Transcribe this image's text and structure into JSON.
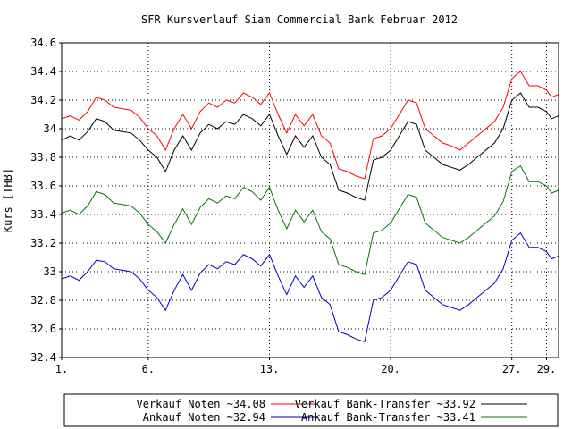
{
  "chart_data": {
    "type": "line",
    "title": "SFR Kursverlauf Siam Commercial Bank Februar 2012",
    "xlabel": "",
    "ylabel": "Kurs [THB]",
    "x_ticks": [
      "1.",
      "6.",
      "13.",
      "20.",
      "27.",
      "29."
    ],
    "x_tick_days": [
      1,
      6,
      13,
      20,
      27,
      29
    ],
    "xlim": [
      1,
      29.7
    ],
    "ylim": [
      32.4,
      34.6
    ],
    "y_ticks": [
      "32.4",
      "32.6",
      "32.8",
      "33",
      "33.2",
      "33.4",
      "33.6",
      "33.8",
      "34",
      "34.2",
      "34.4",
      "34.6"
    ],
    "y_tick_values": [
      32.4,
      32.6,
      32.8,
      33.0,
      33.2,
      33.4,
      33.6,
      33.8,
      34.0,
      34.2,
      34.4,
      34.6
    ],
    "grid": true,
    "legend_position": "bottom",
    "series": [
      {
        "name": "Verkauf Noten ~34.08",
        "color": "#ff0000",
        "points": [
          [
            1,
            34.07
          ],
          [
            1.5,
            34.09
          ],
          [
            2,
            34.06
          ],
          [
            2.5,
            34.12
          ],
          [
            3,
            34.22
          ],
          [
            3.5,
            34.2
          ],
          [
            4,
            34.15
          ],
          [
            4.5,
            34.14
          ],
          [
            5,
            34.13
          ],
          [
            5.5,
            34.08
          ],
          [
            6,
            34.0
          ],
          [
            6.5,
            33.95
          ],
          [
            7,
            33.85
          ],
          [
            7.5,
            34.0
          ],
          [
            8,
            34.1
          ],
          [
            8.5,
            34.0
          ],
          [
            9,
            34.12
          ],
          [
            9.5,
            34.18
          ],
          [
            10,
            34.15
          ],
          [
            10.5,
            34.2
          ],
          [
            11,
            34.18
          ],
          [
            11.5,
            34.25
          ],
          [
            12,
            34.22
          ],
          [
            12.5,
            34.17
          ],
          [
            13,
            34.25
          ],
          [
            13.5,
            34.1
          ],
          [
            14,
            33.97
          ],
          [
            14.5,
            34.1
          ],
          [
            15,
            34.02
          ],
          [
            15.5,
            34.1
          ],
          [
            16,
            33.95
          ],
          [
            16.5,
            33.9
          ],
          [
            17,
            33.72
          ],
          [
            17.5,
            33.7
          ],
          [
            18,
            33.67
          ],
          [
            18.5,
            33.65
          ],
          [
            19,
            33.93
          ],
          [
            19.5,
            33.95
          ],
          [
            20,
            34.0
          ],
          [
            20.5,
            34.1
          ],
          [
            21,
            34.2
          ],
          [
            21.5,
            34.18
          ],
          [
            22,
            34.0
          ],
          [
            22.5,
            33.95
          ],
          [
            23,
            33.9
          ],
          [
            23.5,
            33.88
          ],
          [
            24,
            33.85
          ],
          [
            24.5,
            33.9
          ],
          [
            25,
            33.95
          ],
          [
            25.5,
            34.0
          ],
          [
            26,
            34.05
          ],
          [
            26.5,
            34.15
          ],
          [
            27,
            34.35
          ],
          [
            27.5,
            34.4
          ],
          [
            28,
            34.3
          ],
          [
            28.5,
            34.3
          ],
          [
            29,
            34.27
          ],
          [
            29.3,
            34.22
          ],
          [
            29.7,
            34.24
          ]
        ]
      },
      {
        "name": "Verkauf Bank-Transfer ~33.92",
        "color": "#000000",
        "points": [
          [
            1,
            33.92
          ],
          [
            1.5,
            33.95
          ],
          [
            2,
            33.92
          ],
          [
            2.5,
            33.98
          ],
          [
            3,
            34.07
          ],
          [
            3.5,
            34.05
          ],
          [
            4,
            33.99
          ],
          [
            4.5,
            33.98
          ],
          [
            5,
            33.97
          ],
          [
            5.5,
            33.92
          ],
          [
            6,
            33.85
          ],
          [
            6.5,
            33.8
          ],
          [
            7,
            33.7
          ],
          [
            7.5,
            33.85
          ],
          [
            8,
            33.95
          ],
          [
            8.5,
            33.85
          ],
          [
            9,
            33.97
          ],
          [
            9.5,
            34.03
          ],
          [
            10,
            34.0
          ],
          [
            10.5,
            34.05
          ],
          [
            11,
            34.03
          ],
          [
            11.5,
            34.1
          ],
          [
            12,
            34.07
          ],
          [
            12.5,
            34.02
          ],
          [
            13,
            34.1
          ],
          [
            13.5,
            33.95
          ],
          [
            14,
            33.82
          ],
          [
            14.5,
            33.95
          ],
          [
            15,
            33.87
          ],
          [
            15.5,
            33.95
          ],
          [
            16,
            33.8
          ],
          [
            16.5,
            33.75
          ],
          [
            17,
            33.57
          ],
          [
            17.5,
            33.55
          ],
          [
            18,
            33.52
          ],
          [
            18.5,
            33.5
          ],
          [
            19,
            33.78
          ],
          [
            19.5,
            33.8
          ],
          [
            20,
            33.85
          ],
          [
            20.5,
            33.95
          ],
          [
            21,
            34.05
          ],
          [
            21.5,
            34.03
          ],
          [
            22,
            33.85
          ],
          [
            22.5,
            33.8
          ],
          [
            23,
            33.75
          ],
          [
            23.5,
            33.73
          ],
          [
            24,
            33.71
          ],
          [
            24.5,
            33.75
          ],
          [
            25,
            33.8
          ],
          [
            25.5,
            33.85
          ],
          [
            26,
            33.9
          ],
          [
            26.5,
            34.0
          ],
          [
            27,
            34.2
          ],
          [
            27.5,
            34.25
          ],
          [
            28,
            34.15
          ],
          [
            28.5,
            34.15
          ],
          [
            29,
            34.12
          ],
          [
            29.3,
            34.07
          ],
          [
            29.7,
            34.09
          ]
        ]
      },
      {
        "name": "Ankauf Noten ~32.94",
        "color": "#0000cc",
        "points": [
          [
            1,
            32.95
          ],
          [
            1.5,
            32.97
          ],
          [
            2,
            32.94
          ],
          [
            2.5,
            33.0
          ],
          [
            3,
            33.08
          ],
          [
            3.5,
            33.07
          ],
          [
            4,
            33.02
          ],
          [
            4.5,
            33.01
          ],
          [
            5,
            33.0
          ],
          [
            5.5,
            32.95
          ],
          [
            6,
            32.87
          ],
          [
            6.5,
            32.82
          ],
          [
            7,
            32.73
          ],
          [
            7.5,
            32.87
          ],
          [
            8,
            32.98
          ],
          [
            8.5,
            32.87
          ],
          [
            9,
            32.99
          ],
          [
            9.5,
            33.05
          ],
          [
            10,
            33.02
          ],
          [
            10.5,
            33.07
          ],
          [
            11,
            33.05
          ],
          [
            11.5,
            33.12
          ],
          [
            12,
            33.09
          ],
          [
            12.5,
            33.04
          ],
          [
            13,
            33.12
          ],
          [
            13.5,
            32.97
          ],
          [
            14,
            32.84
          ],
          [
            14.5,
            32.97
          ],
          [
            15,
            32.89
          ],
          [
            15.5,
            32.97
          ],
          [
            16,
            32.82
          ],
          [
            16.5,
            32.77
          ],
          [
            17,
            32.58
          ],
          [
            17.5,
            32.56
          ],
          [
            18,
            32.53
          ],
          [
            18.5,
            32.51
          ],
          [
            19,
            32.8
          ],
          [
            19.5,
            32.82
          ],
          [
            20,
            32.87
          ],
          [
            20.5,
            32.97
          ],
          [
            21,
            33.07
          ],
          [
            21.5,
            33.05
          ],
          [
            22,
            32.87
          ],
          [
            22.5,
            32.82
          ],
          [
            23,
            32.77
          ],
          [
            23.5,
            32.75
          ],
          [
            24,
            32.73
          ],
          [
            24.5,
            32.77
          ],
          [
            25,
            32.82
          ],
          [
            25.5,
            32.87
          ],
          [
            26,
            32.92
          ],
          [
            26.5,
            33.02
          ],
          [
            27,
            33.22
          ],
          [
            27.5,
            33.27
          ],
          [
            28,
            33.17
          ],
          [
            28.5,
            33.17
          ],
          [
            29,
            33.14
          ],
          [
            29.3,
            33.09
          ],
          [
            29.7,
            33.11
          ]
        ]
      },
      {
        "name": "Ankauf Bank-Transfer ~33.41",
        "color": "#007700",
        "points": [
          [
            1,
            33.41
          ],
          [
            1.5,
            33.43
          ],
          [
            2,
            33.4
          ],
          [
            2.5,
            33.46
          ],
          [
            3,
            33.56
          ],
          [
            3.5,
            33.54
          ],
          [
            4,
            33.48
          ],
          [
            4.5,
            33.47
          ],
          [
            5,
            33.46
          ],
          [
            5.5,
            33.41
          ],
          [
            6,
            33.33
          ],
          [
            6.5,
            33.28
          ],
          [
            7,
            33.2
          ],
          [
            7.5,
            33.33
          ],
          [
            8,
            33.44
          ],
          [
            8.5,
            33.33
          ],
          [
            9,
            33.45
          ],
          [
            9.5,
            33.51
          ],
          [
            10,
            33.48
          ],
          [
            10.5,
            33.53
          ],
          [
            11,
            33.51
          ],
          [
            11.5,
            33.59
          ],
          [
            12,
            33.56
          ],
          [
            12.5,
            33.5
          ],
          [
            13,
            33.59
          ],
          [
            13.5,
            33.43
          ],
          [
            14,
            33.3
          ],
          [
            14.5,
            33.43
          ],
          [
            15,
            33.35
          ],
          [
            15.5,
            33.43
          ],
          [
            16,
            33.28
          ],
          [
            16.5,
            33.23
          ],
          [
            17,
            33.05
          ],
          [
            17.5,
            33.03
          ],
          [
            18,
            33.0
          ],
          [
            18.5,
            32.98
          ],
          [
            19,
            33.27
          ],
          [
            19.5,
            33.29
          ],
          [
            20,
            33.34
          ],
          [
            20.5,
            33.44
          ],
          [
            21,
            33.54
          ],
          [
            21.5,
            33.52
          ],
          [
            22,
            33.34
          ],
          [
            22.5,
            33.29
          ],
          [
            23,
            33.24
          ],
          [
            23.5,
            33.22
          ],
          [
            24,
            33.2
          ],
          [
            24.5,
            33.24
          ],
          [
            25,
            33.29
          ],
          [
            25.5,
            33.34
          ],
          [
            26,
            33.39
          ],
          [
            26.5,
            33.49
          ],
          [
            27,
            33.7
          ],
          [
            27.5,
            33.74
          ],
          [
            28,
            33.63
          ],
          [
            28.5,
            33.63
          ],
          [
            29,
            33.6
          ],
          [
            29.3,
            33.55
          ],
          [
            29.7,
            33.57
          ]
        ]
      }
    ]
  }
}
